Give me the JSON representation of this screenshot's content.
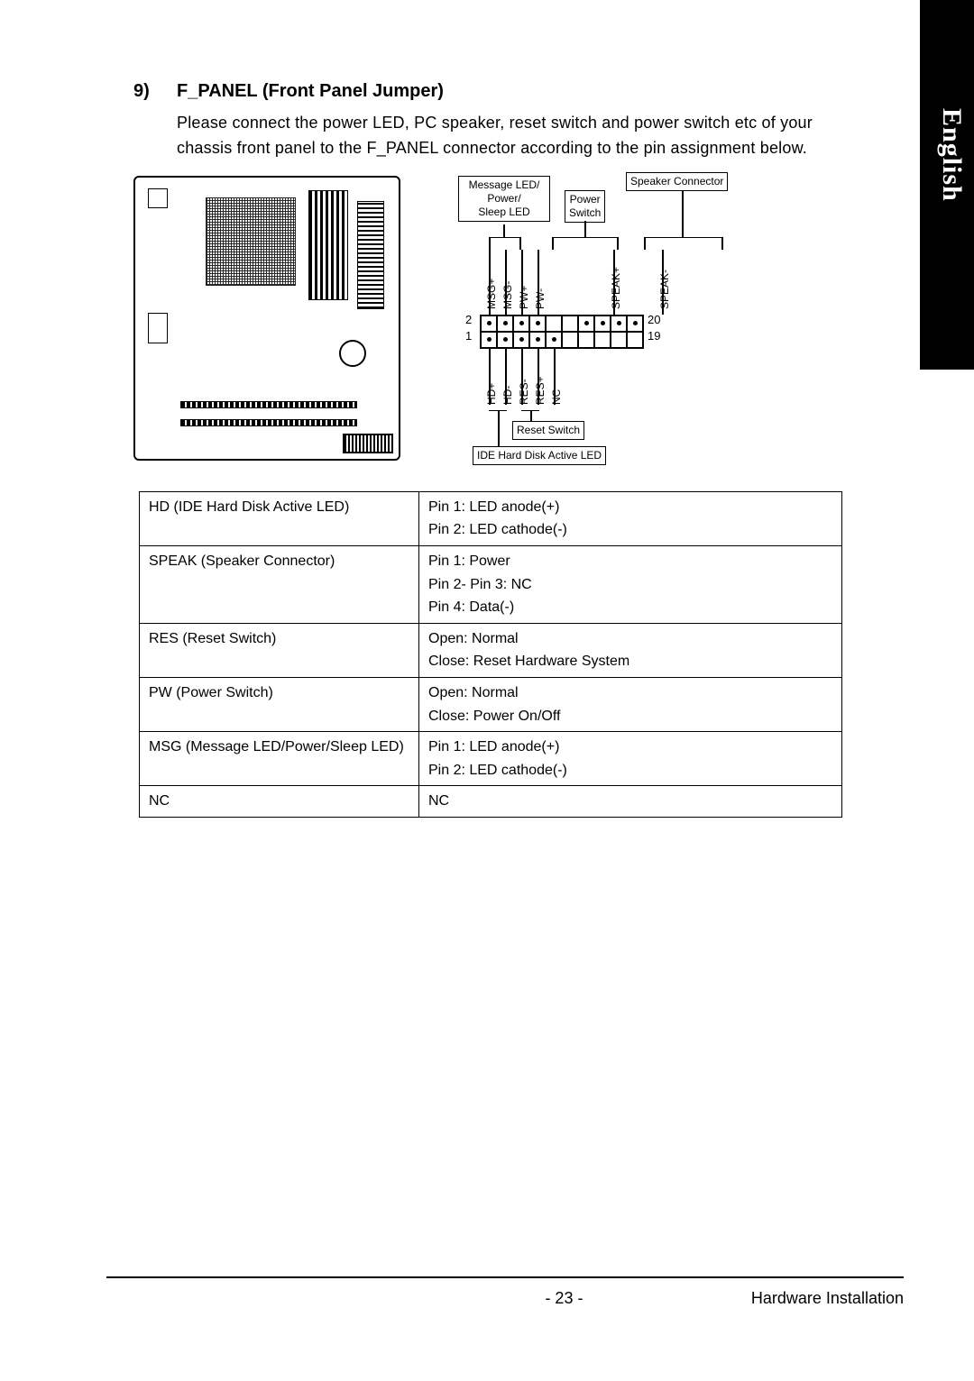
{
  "side_tab_label": "English",
  "section": {
    "number": "9)",
    "title": "F_PANEL (Front Panel Jumper)",
    "body": "Please connect the power LED, PC speaker, reset switch and power switch etc of your chassis front panel to the F_PANEL connector according to the pin assignment below."
  },
  "diagram": {
    "boxes": {
      "msg_led": "Message LED/\nPower/\nSleep LED",
      "power_switch": "Power\nSwitch",
      "speaker_connector": "Speaker Connector",
      "reset_switch": "Reset Switch",
      "ide_led": "IDE Hard Disk Active LED"
    },
    "top_signals": [
      "MSG+",
      "MSG-",
      "PW+",
      "PW-",
      "SPEAK+",
      "SPEAK-"
    ],
    "bottom_signals": [
      "HD+",
      "HD-",
      "RES-",
      "RES+",
      "NC"
    ],
    "left_nums": [
      "2",
      "1"
    ],
    "right_nums": [
      "20",
      "19"
    ]
  },
  "table": {
    "rows": [
      {
        "c1": "HD (IDE Hard Disk Active LED)",
        "c2": "Pin 1: LED anode(+)\nPin 2: LED cathode(-)"
      },
      {
        "c1": "SPEAK (Speaker Connector)",
        "c2": "Pin 1: Power\nPin 2- Pin 3: NC\nPin 4: Data(-)"
      },
      {
        "c1": "RES (Reset Switch)",
        "c2": "Open: Normal\nClose: Reset Hardware System"
      },
      {
        "c1": "PW (Power Switch)",
        "c2": "Open: Normal\nClose: Power On/Off"
      },
      {
        "c1": "MSG (Message LED/Power/Sleep LED)",
        "c2": "Pin 1: LED anode(+)\nPin 2: LED cathode(-)"
      },
      {
        "c1": "NC",
        "c2": "NC"
      }
    ]
  },
  "footer": {
    "page_number": "- 23 -",
    "section_name": "Hardware Installation"
  },
  "colors": {
    "text": "#000000",
    "background": "#ffffff",
    "tab": "#000000"
  }
}
